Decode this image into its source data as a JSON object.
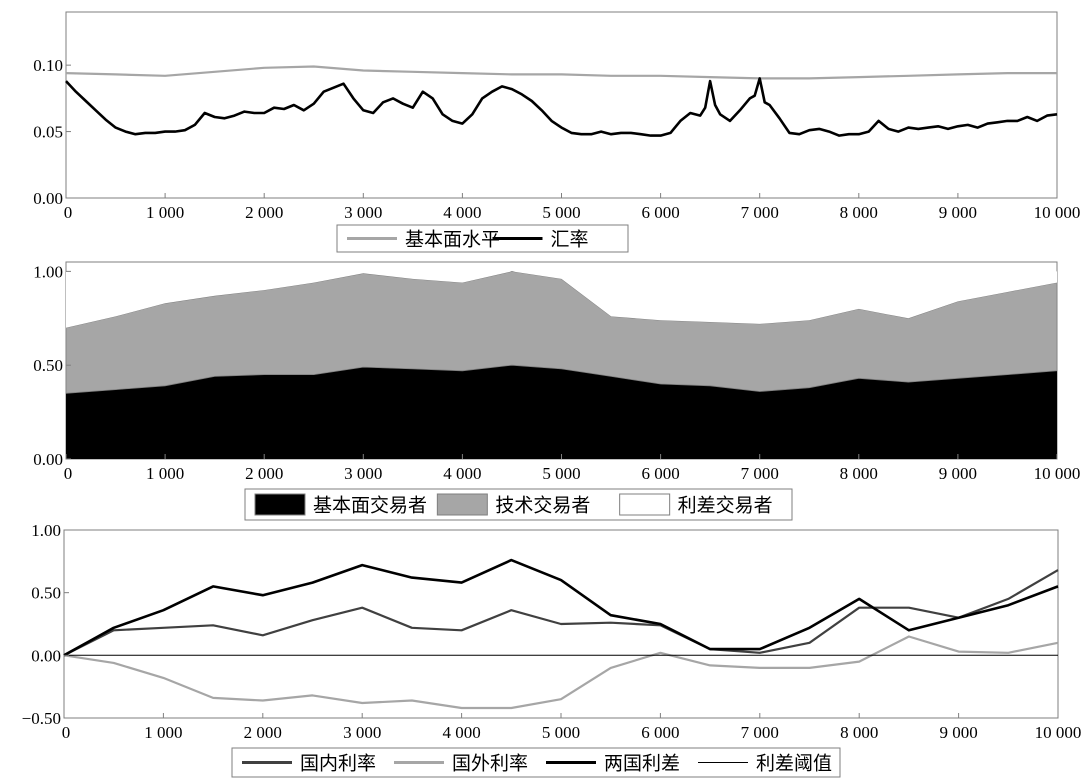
{
  "chart_data": [
    {
      "type": "line",
      "xlim": [
        0,
        10000
      ],
      "ylim": [
        0,
        0.14
      ],
      "x_ticks": [
        0,
        1000,
        2000,
        3000,
        4000,
        5000,
        6000,
        7000,
        8000,
        9000,
        10000
      ],
      "x_tick_labels": [
        "0",
        "1 000",
        "2 000",
        "3 000",
        "4 000",
        "5 000",
        "6 000",
        "7 000",
        "8 000",
        "9 000",
        "10 000"
      ],
      "y_ticks": [
        0,
        0.05,
        0.1
      ],
      "y_tick_labels": [
        "0.00",
        "0.05",
        "0.10"
      ],
      "legend_position": "bottom",
      "grid": false,
      "series": [
        {
          "name": "基本面水平",
          "color": "#a6a6a6",
          "x": [
            0,
            500,
            1000,
            1500,
            2000,
            2500,
            3000,
            3500,
            4000,
            4500,
            5000,
            5500,
            6000,
            6500,
            7000,
            7500,
            8000,
            8500,
            9000,
            9500,
            10000
          ],
          "values": [
            0.094,
            0.093,
            0.092,
            0.095,
            0.098,
            0.099,
            0.096,
            0.095,
            0.094,
            0.093,
            0.093,
            0.092,
            0.092,
            0.091,
            0.09,
            0.09,
            0.091,
            0.092,
            0.093,
            0.094,
            0.094
          ]
        },
        {
          "name": "汇率",
          "color": "#000000",
          "x": [
            0,
            100,
            200,
            300,
            400,
            500,
            600,
            700,
            800,
            900,
            1000,
            1100,
            1200,
            1300,
            1400,
            1500,
            1600,
            1700,
            1800,
            1900,
            2000,
            2100,
            2200,
            2300,
            2400,
            2500,
            2600,
            2700,
            2800,
            2900,
            3000,
            3100,
            3200,
            3300,
            3400,
            3500,
            3600,
            3700,
            3800,
            3900,
            4000,
            4100,
            4200,
            4300,
            4400,
            4500,
            4600,
            4700,
            4800,
            4900,
            5000,
            5100,
            5200,
            5300,
            5400,
            5500,
            5600,
            5700,
            5800,
            5900,
            6000,
            6100,
            6200,
            6300,
            6400,
            6450,
            6500,
            6550,
            6600,
            6700,
            6800,
            6900,
            6950,
            7000,
            7050,
            7100,
            7200,
            7300,
            7400,
            7500,
            7600,
            7700,
            7800,
            7900,
            8000,
            8100,
            8200,
            8300,
            8400,
            8500,
            8600,
            8700,
            8800,
            8900,
            9000,
            9100,
            9200,
            9300,
            9400,
            9500,
            9600,
            9700,
            9800,
            9900,
            10000
          ],
          "values": [
            0.088,
            0.08,
            0.073,
            0.066,
            0.059,
            0.053,
            0.05,
            0.048,
            0.049,
            0.049,
            0.05,
            0.05,
            0.051,
            0.055,
            0.064,
            0.061,
            0.06,
            0.062,
            0.065,
            0.064,
            0.064,
            0.068,
            0.067,
            0.07,
            0.066,
            0.071,
            0.08,
            0.083,
            0.086,
            0.075,
            0.066,
            0.064,
            0.072,
            0.075,
            0.071,
            0.068,
            0.08,
            0.075,
            0.063,
            0.058,
            0.056,
            0.063,
            0.075,
            0.08,
            0.084,
            0.082,
            0.078,
            0.073,
            0.066,
            0.058,
            0.053,
            0.049,
            0.048,
            0.048,
            0.05,
            0.048,
            0.049,
            0.049,
            0.048,
            0.047,
            0.047,
            0.049,
            0.058,
            0.064,
            0.062,
            0.068,
            0.088,
            0.07,
            0.063,
            0.058,
            0.066,
            0.075,
            0.077,
            0.09,
            0.072,
            0.07,
            0.06,
            0.049,
            0.048,
            0.051,
            0.052,
            0.05,
            0.047,
            0.048,
            0.048,
            0.05,
            0.058,
            0.052,
            0.05,
            0.053,
            0.052,
            0.053,
            0.054,
            0.052,
            0.054,
            0.055,
            0.053,
            0.056,
            0.057,
            0.058,
            0.058,
            0.061,
            0.058,
            0.062,
            0.063
          ]
        }
      ]
    },
    {
      "type": "area",
      "stacked": true,
      "xlim": [
        0,
        10000
      ],
      "ylim": [
        0,
        1.05
      ],
      "x_ticks": [
        0,
        1000,
        2000,
        3000,
        4000,
        5000,
        6000,
        7000,
        8000,
        9000,
        10000
      ],
      "x_tick_labels": [
        "0",
        "1 000",
        "2 000",
        "3 000",
        "4 000",
        "5 000",
        "6 000",
        "7 000",
        "8 000",
        "9 000",
        "10 000"
      ],
      "y_ticks": [
        0,
        0.5,
        1
      ],
      "y_tick_labels": [
        "0.00",
        "0.50",
        "1.00"
      ],
      "legend_position": "bottom",
      "grid": false,
      "series": [
        {
          "name": "基本面交易者",
          "color": "#000000",
          "x": [
            0,
            500,
            1000,
            1500,
            2000,
            2500,
            3000,
            3500,
            4000,
            4500,
            5000,
            5500,
            6000,
            6500,
            7000,
            7500,
            8000,
            8500,
            9000,
            9500,
            10000
          ],
          "values": [
            0.35,
            0.37,
            0.39,
            0.44,
            0.45,
            0.45,
            0.49,
            0.48,
            0.47,
            0.5,
            0.48,
            0.44,
            0.4,
            0.39,
            0.36,
            0.38,
            0.43,
            0.41,
            0.43,
            0.45,
            0.47
          ]
        },
        {
          "name": "技术交易者",
          "color": "#a6a6a6",
          "x": [
            0,
            500,
            1000,
            1500,
            2000,
            2500,
            3000,
            3500,
            4000,
            4500,
            5000,
            5500,
            6000,
            6500,
            7000,
            7500,
            8000,
            8500,
            9000,
            9500,
            10000
          ],
          "values": [
            0.35,
            0.39,
            0.44,
            0.43,
            0.45,
            0.49,
            0.5,
            0.48,
            0.47,
            0.5,
            0.48,
            0.32,
            0.34,
            0.34,
            0.36,
            0.36,
            0.37,
            0.34,
            0.41,
            0.44,
            0.47
          ]
        },
        {
          "name": "利差交易者",
          "color": "#ffffff",
          "x": [
            0,
            500,
            1000,
            1500,
            2000,
            2500,
            3000,
            3500,
            4000,
            4500,
            5000,
            5500,
            6000,
            6500,
            7000,
            7500,
            8000,
            8500,
            9000,
            9500,
            10000
          ],
          "values": [
            0.3,
            0.24,
            0.17,
            0.13,
            0.1,
            0.06,
            0.01,
            0.04,
            0.06,
            0,
            0.04,
            0.24,
            0.26,
            0.27,
            0.28,
            0.26,
            0.2,
            0.25,
            0.16,
            0.11,
            0.06
          ]
        }
      ]
    },
    {
      "type": "line",
      "xlim": [
        0,
        10000
      ],
      "ylim": [
        -0.5,
        1.0
      ],
      "x_ticks": [
        0,
        1000,
        2000,
        3000,
        4000,
        5000,
        6000,
        7000,
        8000,
        9000,
        10000
      ],
      "x_tick_labels": [
        "0",
        "1 000",
        "2 000",
        "3 000",
        "4 000",
        "5 000",
        "6 000",
        "7 000",
        "8 000",
        "9 000",
        "10 000"
      ],
      "y_ticks": [
        -0.5,
        0,
        0.5,
        1
      ],
      "y_tick_labels": [
        "−0.50",
        "0.00",
        "0.50",
        "1.00"
      ],
      "legend_position": "bottom",
      "grid": false,
      "series": [
        {
          "name": "国内利率",
          "color": "#404040",
          "x": [
            0,
            500,
            1000,
            1500,
            2000,
            2500,
            3000,
            3500,
            4000,
            4500,
            5000,
            5500,
            6000,
            6500,
            7000,
            7500,
            8000,
            8500,
            9000,
            9500,
            10000
          ],
          "values": [
            0,
            0.2,
            0.22,
            0.24,
            0.16,
            0.28,
            0.38,
            0.22,
            0.2,
            0.36,
            0.25,
            0.26,
            0.24,
            0.05,
            0.02,
            0.1,
            0.38,
            0.38,
            0.3,
            0.45,
            0.68
          ]
        },
        {
          "name": "国外利率",
          "color": "#a6a6a6",
          "x": [
            0,
            500,
            1000,
            1500,
            2000,
            2500,
            3000,
            3500,
            4000,
            4500,
            5000,
            5500,
            6000,
            6500,
            7000,
            7500,
            8000,
            8500,
            9000,
            9500,
            10000
          ],
          "values": [
            0,
            -0.06,
            -0.18,
            -0.34,
            -0.36,
            -0.32,
            -0.38,
            -0.36,
            -0.42,
            -0.42,
            -0.35,
            -0.1,
            0.02,
            -0.08,
            -0.1,
            -0.1,
            -0.05,
            0.15,
            0.03,
            0.02,
            0.1
          ]
        },
        {
          "name": "两国利差",
          "color": "#000000",
          "x": [
            0,
            500,
            1000,
            1500,
            2000,
            2500,
            3000,
            3500,
            4000,
            4500,
            5000,
            5500,
            6000,
            6500,
            7000,
            7500,
            8000,
            8500,
            9000,
            9500,
            10000
          ],
          "values": [
            0,
            0.22,
            0.36,
            0.55,
            0.48,
            0.58,
            0.72,
            0.62,
            0.58,
            0.76,
            0.6,
            0.32,
            0.25,
            0.05,
            0.05,
            0.22,
            0.45,
            0.2,
            0.3,
            0.4,
            0.55
          ]
        },
        {
          "name": "利差阈值",
          "color": "#000000",
          "x": [
            0,
            10000
          ],
          "values": [
            0,
            0
          ]
        }
      ]
    }
  ]
}
